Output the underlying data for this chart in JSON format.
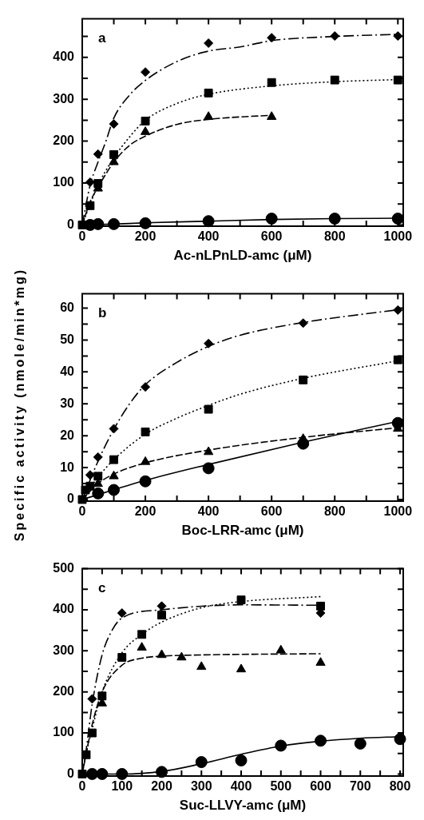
{
  "chart_data": [
    {
      "type": "scatter",
      "xlabel": "Ac-nLPnLD-amc (μM)",
      "annotations": [
        "a"
      ],
      "xlim": [
        0,
        1017
      ],
      "ylim": [
        -3,
        492
      ],
      "xticks": [
        0,
        {
          "value": 100,
          "label": null
        },
        200,
        {
          "value": 300,
          "label": null
        },
        400,
        {
          "value": 500,
          "label": null
        },
        600,
        {
          "value": 700,
          "label": null
        },
        800,
        {
          "value": 900,
          "label": null
        },
        1000
      ],
      "yticks": [
        0,
        {
          "value": 50,
          "label": null
        },
        100,
        {
          "value": 150,
          "label": null
        },
        200,
        {
          "value": 250,
          "label": null
        },
        300,
        {
          "value": 350,
          "label": null
        },
        400,
        {
          "value": 450,
          "label": null
        }
      ],
      "series": [
        {
          "type": "scatter",
          "marker": "diamond",
          "color": "#000000",
          "x": [
            25,
            50,
            100,
            200,
            400,
            600,
            800,
            1000
          ],
          "values": [
            102,
            169,
            241,
            365,
            434,
            447,
            451,
            451
          ]
        },
        {
          "type": "scatter",
          "marker": "square",
          "color": "#000000",
          "x": [
            0,
            25,
            50,
            100,
            200,
            400,
            600,
            800,
            1000
          ],
          "values": [
            0,
            46,
            99,
            168,
            248,
            315,
            340,
            346,
            346
          ]
        },
        {
          "type": "scatter",
          "marker": "triangle",
          "color": "#000000",
          "x": [
            50,
            100,
            200,
            400,
            600
          ],
          "values": [
            87,
            150,
            222,
            258,
            258
          ]
        },
        {
          "type": "scatter",
          "marker": "circle",
          "color": "#000000",
          "x": [
            25,
            50,
            100,
            200,
            400,
            600,
            800,
            1000
          ],
          "values": [
            0,
            2,
            2,
            4,
            9,
            15,
            15,
            15
          ]
        },
        {
          "type": "line",
          "line_style": "dashdot",
          "color": "#000000",
          "x": [
            0,
            25,
            50,
            75,
            100,
            150,
            200,
            300,
            400,
            500,
            600,
            800,
            1000
          ],
          "values": [
            0,
            95,
            150,
            200,
            255,
            310,
            345,
            390,
            415,
            425,
            440,
            450,
            455
          ]
        },
        {
          "type": "line",
          "line_style": "dotted",
          "color": "#000000",
          "x": [
            0,
            25,
            50,
            100,
            150,
            200,
            300,
            400,
            600,
            800,
            1000
          ],
          "values": [
            0,
            50,
            95,
            160,
            210,
            250,
            290,
            312,
            332,
            342,
            347
          ]
        },
        {
          "type": "line",
          "line_style": "dashed",
          "color": "#000000",
          "x": [
            0,
            25,
            50,
            100,
            150,
            200,
            300,
            400,
            600
          ],
          "values": [
            0,
            55,
            90,
            150,
            190,
            212,
            240,
            252,
            262
          ]
        },
        {
          "type": "line",
          "line_style": "solid",
          "color": "#000000",
          "x": [
            0,
            100,
            200,
            400,
            600,
            800,
            1000
          ],
          "values": [
            0,
            2,
            5,
            9,
            13,
            15,
            16
          ]
        }
      ]
    },
    {
      "type": "scatter",
      "xlabel": "Boc-LRR-amc (μM)",
      "ylabel": "Specific activity (nmole/min*mg)",
      "annotations": [
        "b"
      ],
      "xlim": [
        0,
        1017
      ],
      "ylim": [
        -0.5,
        64.5
      ],
      "xticks": [
        0,
        {
          "value": 100,
          "label": null
        },
        200,
        {
          "value": 300,
          "label": null
        },
        400,
        {
          "value": 500,
          "label": null
        },
        600,
        {
          "value": 700,
          "label": null
        },
        800,
        {
          "value": 900,
          "label": null
        },
        1000
      ],
      "yticks": [
        0,
        {
          "value": 5,
          "label": null
        },
        10,
        {
          "value": 15,
          "label": null
        },
        20,
        {
          "value": 25,
          "label": null
        },
        30,
        {
          "value": 35,
          "label": null
        },
        40,
        {
          "value": 45,
          "label": null
        },
        50,
        {
          "value": 55,
          "label": null
        },
        60
      ],
      "series": [
        {
          "type": "scatter",
          "marker": "diamond",
          "color": "#000000",
          "x": [
            25,
            50,
            100,
            200,
            400,
            700,
            1000
          ],
          "values": [
            7.7,
            13.3,
            22.2,
            35.3,
            48.9,
            55.3,
            59.4
          ]
        },
        {
          "type": "scatter",
          "marker": "square",
          "color": "#000000",
          "x": [
            0,
            10,
            25,
            50,
            100,
            200,
            400,
            700,
            1000
          ],
          "values": [
            0,
            3,
            4.2,
            7.3,
            12.5,
            21.2,
            28.3,
            37.5,
            43.8
          ]
        },
        {
          "type": "scatter",
          "marker": "triangle",
          "color": "#000000",
          "x": [
            50,
            100,
            200,
            400,
            700,
            1000
          ],
          "values": [
            4.9,
            7.3,
            11.8,
            14.9,
            19,
            22.2
          ]
        },
        {
          "type": "scatter",
          "marker": "circle",
          "color": "#000000",
          "x": [
            50,
            100,
            200,
            400,
            700,
            1000
          ],
          "values": [
            1.9,
            3,
            5.7,
            9.8,
            17.5,
            24
          ]
        },
        {
          "type": "line",
          "line_style": "dashdot",
          "color": "#000000",
          "x": [
            0,
            50,
            100,
            150,
            200,
            300,
            400,
            500,
            700,
            1000
          ],
          "values": [
            0,
            12,
            22,
            30,
            36,
            43,
            48,
            51.5,
            55.5,
            59.5
          ]
        },
        {
          "type": "line",
          "line_style": "dotted",
          "color": "#000000",
          "x": [
            0,
            50,
            100,
            200,
            300,
            400,
            500,
            700,
            1000
          ],
          "values": [
            0,
            7,
            12.5,
            20.5,
            25.5,
            29.5,
            33,
            38,
            43.5
          ]
        },
        {
          "type": "line",
          "line_style": "dashed",
          "color": "#000000",
          "x": [
            0,
            50,
            100,
            200,
            400,
            700,
            1000
          ],
          "values": [
            0,
            5,
            8,
            11.5,
            15.5,
            19.5,
            22.5
          ]
        },
        {
          "type": "line",
          "line_style": "solid",
          "color": "#000000",
          "x": [
            0,
            200,
            400,
            700,
            1000
          ],
          "values": [
            0,
            6,
            11,
            18,
            24.5
          ]
        }
      ]
    },
    {
      "type": "scatter",
      "xlabel": "Suc-LLVY-amc (μM)",
      "annotations": [
        "c"
      ],
      "xlim": [
        0,
        808
      ],
      "ylim": [
        -5,
        500
      ],
      "xticks": [
        0,
        {
          "value": 50,
          "label": null
        },
        100,
        {
          "value": 150,
          "label": null
        },
        200,
        {
          "value": 250,
          "label": null
        },
        300,
        {
          "value": 350,
          "label": null
        },
        400,
        {
          "value": 450,
          "label": null
        },
        500,
        {
          "value": 550,
          "label": null
        },
        600,
        {
          "value": 650,
          "label": null
        },
        700,
        {
          "value": 750,
          "label": null
        },
        800
      ],
      "yticks": [
        0,
        {
          "value": 50,
          "label": null
        },
        100,
        {
          "value": 150,
          "label": null
        },
        200,
        {
          "value": 250,
          "label": null
        },
        300,
        {
          "value": 350,
          "label": null
        },
        400,
        {
          "value": 450,
          "label": null
        },
        500
      ],
      "series": [
        {
          "type": "scatter",
          "marker": "diamond",
          "color": "#000000",
          "x": [
            25,
            100,
            200,
            600
          ],
          "values": [
            183,
            392,
            409,
            392
          ]
        },
        {
          "type": "scatter",
          "marker": "square",
          "color": "#000000",
          "x": [
            0,
            10,
            25,
            50,
            100,
            150,
            200,
            400,
            600
          ],
          "values": [
            0,
            47,
            100,
            190,
            284,
            340,
            387,
            424,
            409
          ]
        },
        {
          "type": "scatter",
          "marker": "triangle",
          "color": "#000000",
          "x": [
            50,
            150,
            200,
            250,
            300,
            400,
            500,
            600
          ],
          "values": [
            172,
            308,
            290,
            284,
            261,
            255,
            301,
            271
          ]
        },
        {
          "type": "scatter",
          "marker": "circle",
          "color": "#000000",
          "x": [
            25,
            50,
            100,
            200,
            300,
            400,
            500,
            600,
            700,
            800
          ],
          "values": [
            0,
            0,
            0,
            5,
            29,
            33,
            69,
            81,
            74,
            85
          ]
        },
        {
          "type": "line",
          "line_style": "dashdot",
          "color": "#000000",
          "x": [
            0,
            10,
            25,
            50,
            75,
            100,
            200,
            400,
            600
          ],
          "values": [
            0,
            60,
            170,
            290,
            350,
            380,
            400,
            412,
            411
          ]
        },
        {
          "type": "line",
          "line_style": "dotted",
          "color": "#000000",
          "x": [
            0,
            10,
            25,
            50,
            100,
            150,
            200,
            300,
            400,
            600
          ],
          "values": [
            0,
            50,
            110,
            200,
            295,
            340,
            370,
            405,
            420,
            432
          ]
        },
        {
          "type": "line",
          "line_style": "dashed",
          "color": "#000000",
          "x": [
            0,
            25,
            50,
            100,
            150,
            200,
            300,
            600
          ],
          "values": [
            0,
            120,
            200,
            265,
            282,
            287,
            290,
            293
          ]
        },
        {
          "type": "line",
          "line_style": "solid",
          "color": "#000000",
          "x": [
            0,
            100,
            200,
            300,
            400,
            500,
            600,
            700,
            800
          ],
          "values": [
            0,
            0,
            6,
            25,
            48,
            68,
            80,
            87,
            91
          ]
        }
      ]
    }
  ]
}
